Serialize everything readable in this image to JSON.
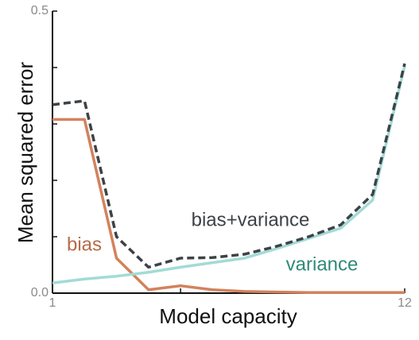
{
  "chart_data": {
    "type": "line",
    "x_label": "Model capacity",
    "y_label": "Mean squared error",
    "x": [
      1,
      2,
      3,
      4,
      5,
      6,
      7,
      8,
      9,
      10,
      11,
      12
    ],
    "series": [
      {
        "name": "bias",
        "color": "#d3825d",
        "label_color": "#b86a48",
        "dashed": false,
        "values": [
          0.308,
          0.308,
          0.062,
          0.006,
          0.013,
          0.006,
          0.003,
          0.002,
          0.001,
          0.001,
          0.001,
          0.001
        ]
      },
      {
        "name": "variance",
        "color": "#a3dbd6",
        "label_color": "#2f8a78",
        "dashed": false,
        "values": [
          0.018,
          0.025,
          0.03,
          0.037,
          0.046,
          0.054,
          0.062,
          0.079,
          0.097,
          0.115,
          0.165,
          0.403
        ]
      },
      {
        "name": "bias+variance",
        "color": "#3d4246",
        "label_color": "#3d4246",
        "dashed": true,
        "values": [
          0.334,
          0.341,
          0.1,
          0.046,
          0.062,
          0.063,
          0.069,
          0.083,
          0.1,
          0.121,
          0.175,
          0.407
        ]
      }
    ],
    "xlim": [
      1,
      12
    ],
    "xticks": [
      1,
      12
    ],
    "xminorticks": [
      5
    ],
    "ylim": [
      0,
      0.5
    ],
    "yticks": [
      {
        "value": 0,
        "label": "0.0"
      },
      0.5
    ],
    "yminorticks": [
      0.1,
      0.2,
      0.3,
      0.4
    ]
  }
}
